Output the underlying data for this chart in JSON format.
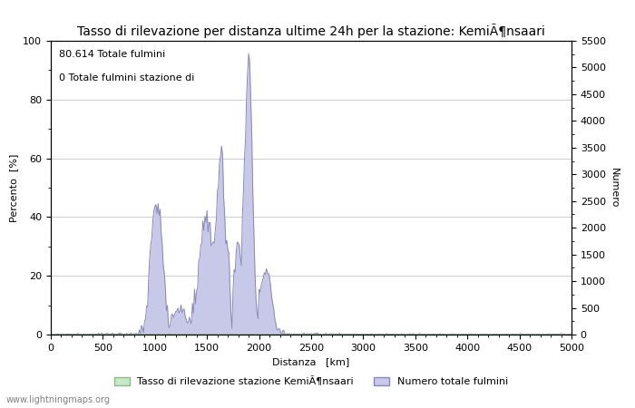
{
  "title": "Tasso di rilevazione per distanza ultime 24h per la stazione: KemiÃ¶nsaari",
  "xlabel": "Distanza   [km]",
  "ylabel_left": "Percento  [%]",
  "ylabel_right": "Numero",
  "annotation_line1": "80.614 Totale fulmini",
  "annotation_line2": "0 Totale fulmini stazione di",
  "legend_green": "Tasso di rilevazione stazione KemiÃ¶nsaari",
  "legend_blue": "Numero totale fulmini",
  "watermark": "www.lightningmaps.org",
  "xlim": [
    0,
    5000
  ],
  "ylim_left": [
    0,
    100
  ],
  "ylim_right": [
    0,
    5500
  ],
  "xticks": [
    0,
    500,
    1000,
    1500,
    2000,
    2500,
    3000,
    3500,
    4000,
    4500,
    5000
  ],
  "yticks_left": [
    0,
    20,
    40,
    60,
    80,
    100
  ],
  "yticks_right": [
    0,
    500,
    1000,
    1500,
    2000,
    2500,
    3000,
    3500,
    4000,
    4500,
    5000,
    5500
  ],
  "bg_color": "#ffffff",
  "grid_color": "#bbbbbb",
  "fill_blue_color": "#c8c8e8",
  "fill_green_color": "#c8e8c8",
  "line_blue_color": "#8888bb",
  "line_green_color": "#88bb88",
  "title_fontsize": 10,
  "label_fontsize": 8,
  "tick_fontsize": 8,
  "annotation_fontsize": 8
}
